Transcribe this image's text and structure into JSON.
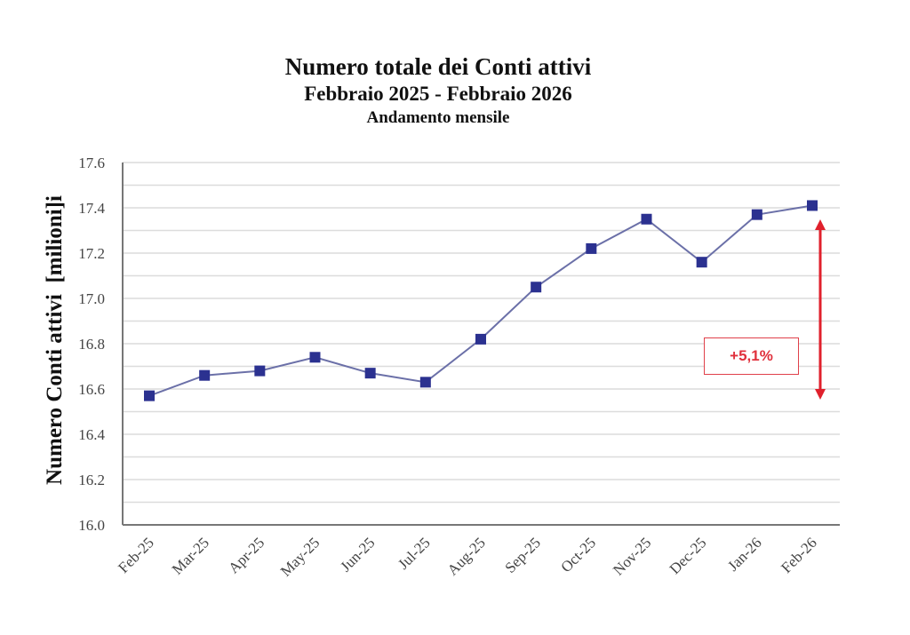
{
  "chart_data": {
    "type": "line",
    "title": "Numero totale dei Conti attivi",
    "subtitle": "Febbraio 2025 - Febbraio 2026",
    "subtitle2": "Andamento mensile",
    "xlabel": "",
    "ylabel": "Numero Conti attivi  [milioni]i",
    "categories": [
      "Feb-25",
      "Mar-25",
      "Apr-25",
      "May-25",
      "Jun-25",
      "Jul-25",
      "Aug-25",
      "Sep-25",
      "Oct-25",
      "Nov-25",
      "Dec-25",
      "Jan-26",
      "Feb-26"
    ],
    "series": [
      {
        "name": "Conti attivi",
        "values": [
          16.57,
          16.66,
          16.68,
          16.74,
          16.67,
          16.63,
          16.82,
          17.05,
          17.22,
          17.35,
          17.16,
          17.37,
          17.41
        ],
        "marker": "square",
        "marker_color": "#2b3190",
        "line_color": "#6b70a8"
      }
    ],
    "ylim": [
      16.0,
      17.6
    ],
    "yticks": [
      "16.0",
      "16.2",
      "16.4",
      "16.6",
      "16.8",
      "17.0",
      "17.2",
      "17.4",
      "17.6"
    ],
    "grid": true,
    "minor_grid_step": 0.1,
    "legend": "none",
    "annotations": [
      {
        "type": "double-arrow",
        "from_value": 16.57,
        "to_value": 17.41,
        "color": "#e0202c"
      },
      {
        "type": "text-box",
        "text": "+5,1%",
        "color": "#e0303c"
      }
    ]
  }
}
